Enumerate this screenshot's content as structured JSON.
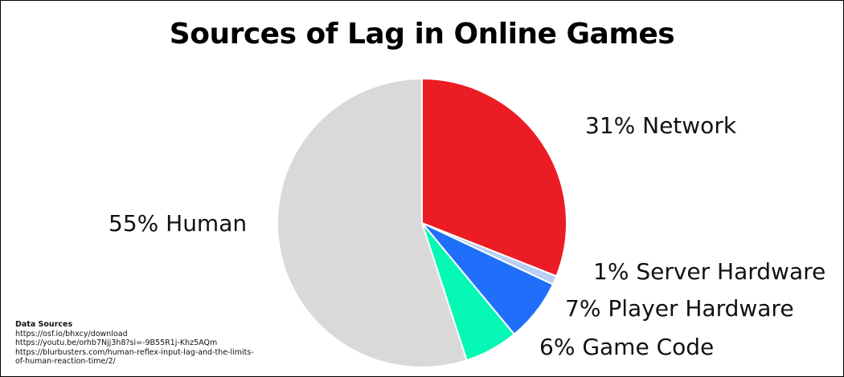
{
  "chart_data": {
    "type": "pie",
    "title": "Sources of Lag in Online Games",
    "slices": [
      {
        "name": "Network",
        "value": 31,
        "label": "31% Network",
        "color": "#ec1c24"
      },
      {
        "name": "Server Hardware",
        "value": 1,
        "label": "1% Server Hardware",
        "color": "#b8cef5"
      },
      {
        "name": "Player Hardware",
        "value": 7,
        "label": "7% Player Hardware",
        "color": "#1f6ffb"
      },
      {
        "name": "Game Code",
        "value": 6,
        "label": "6% Game Code",
        "color": "#06f9b4"
      },
      {
        "name": "Human",
        "value": 55,
        "label": "55% Human",
        "color": "#d9d9d9"
      }
    ],
    "start": "top",
    "direction": "clockwise",
    "legend": "none"
  },
  "sources": {
    "heading": "Data Sources",
    "lines": [
      "https://osf.io/bhxcy/download",
      "https://youtu.be/orhb7Njj3h8?si=-9B55R1j-Khz5AQm",
      "https://blurbusters.com/human-reflex-input-lag-and-the-limits-",
      "of-human-reaction-time/2/"
    ]
  }
}
